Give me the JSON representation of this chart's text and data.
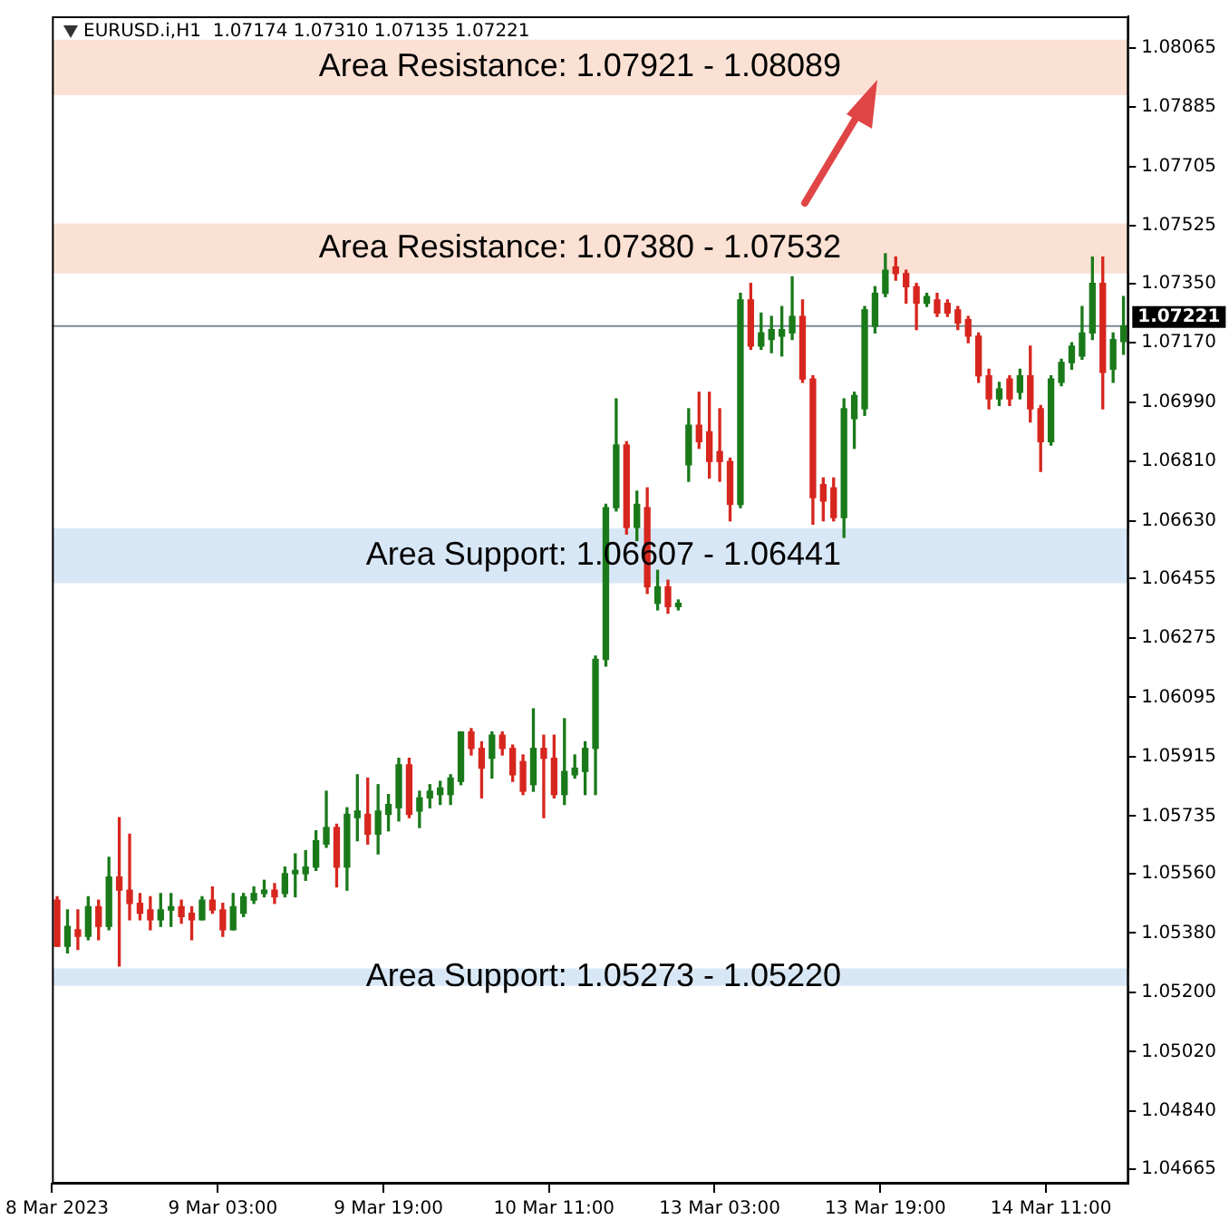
{
  "chart_data": {
    "type": "candlestick",
    "title": "EURUSD.i,H1  1.07174 1.07310 1.07135 1.07221",
    "categories": [
      "8 Mar 2023",
      null,
      null,
      null,
      null,
      null,
      null,
      null,
      null,
      null,
      null,
      null,
      null,
      null,
      null,
      null,
      "9 Mar 03:00",
      null,
      null,
      null,
      null,
      null,
      null,
      null,
      null,
      null,
      null,
      null,
      null,
      null,
      null,
      null,
      "9 Mar 19:00",
      null,
      null,
      null,
      null,
      null,
      null,
      null,
      null,
      null,
      null,
      null,
      null,
      null,
      null,
      null,
      "10 Mar 11:00",
      null,
      null,
      null,
      null,
      null,
      null,
      null,
      null,
      null,
      null,
      null,
      null,
      null,
      null,
      null,
      "13 Mar 03:00",
      null,
      null,
      null,
      null,
      null,
      null,
      null,
      null,
      null,
      null,
      null,
      null,
      null,
      null,
      null,
      "13 Mar 19:00",
      null,
      null,
      null,
      null,
      null,
      null,
      null,
      null,
      null,
      null,
      null,
      null,
      null,
      null,
      null,
      "14 Mar 11:00",
      null,
      null,
      null,
      null,
      null,
      null,
      null
    ],
    "ohlc": [
      [
        1.0548,
        1.0549,
        1.0534,
        1.0534
      ],
      [
        1.0534,
        1.0545,
        1.0532,
        1.054
      ],
      [
        1.0539,
        1.0545,
        1.0533,
        1.0537
      ],
      [
        1.0537,
        1.0549,
        1.0536,
        1.0546
      ],
      [
        1.0546,
        1.0548,
        1.0536,
        1.054
      ],
      [
        1.054,
        1.0561,
        1.0539,
        1.0555
      ],
      [
        1.0555,
        1.0573,
        1.0528,
        1.0551
      ],
      [
        1.0551,
        1.0568,
        1.0542,
        1.0547
      ],
      [
        1.0547,
        1.055,
        1.0542,
        1.0544
      ],
      [
        1.0545,
        1.0549,
        1.0539,
        1.0542
      ],
      [
        1.0542,
        1.055,
        1.054,
        1.0545
      ],
      [
        1.0545,
        1.055,
        1.054,
        1.0546
      ],
      [
        1.0546,
        1.0548,
        1.0541,
        1.0543
      ],
      [
        1.0544,
        1.0546,
        1.0536,
        1.0542
      ],
      [
        1.0542,
        1.0549,
        1.0542,
        1.0548
      ],
      [
        1.0548,
        1.0552,
        1.0544,
        1.0545
      ],
      [
        1.0545,
        1.0547,
        1.0537,
        1.0539
      ],
      [
        1.0539,
        1.055,
        1.0539,
        1.0546
      ],
      [
        1.0544,
        1.055,
        1.0543,
        1.0549
      ],
      [
        1.0548,
        1.0552,
        1.0547,
        1.055
      ],
      [
        1.055,
        1.0554,
        1.0549,
        1.0551
      ],
      [
        1.0551,
        1.0553,
        1.0547,
        1.0549
      ],
      [
        1.055,
        1.0558,
        1.0549,
        1.0556
      ],
      [
        1.0556,
        1.0562,
        1.0549,
        1.0557
      ],
      [
        1.0556,
        1.0563,
        1.0554,
        1.0558
      ],
      [
        1.0558,
        1.0569,
        1.0557,
        1.0566
      ],
      [
        1.0565,
        1.0581,
        1.0564,
        1.057
      ],
      [
        1.057,
        1.0571,
        1.0552,
        1.0558
      ],
      [
        1.0558,
        1.0576,
        1.0551,
        1.0574
      ],
      [
        1.0573,
        1.0586,
        1.0566,
        1.0575
      ],
      [
        1.0574,
        1.0585,
        1.0565,
        1.0568
      ],
      [
        1.0568,
        1.0583,
        1.0562,
        1.0575
      ],
      [
        1.0574,
        1.058,
        1.0569,
        1.0577
      ],
      [
        1.0576,
        1.0591,
        1.0572,
        1.0589
      ],
      [
        1.0589,
        1.0591,
        1.0573,
        1.0574
      ],
      [
        1.0575,
        1.0581,
        1.057,
        1.0579
      ],
      [
        1.0579,
        1.0583,
        1.0576,
        1.0581
      ],
      [
        1.058,
        1.0584,
        1.0577,
        1.0582
      ],
      [
        1.058,
        1.0586,
        1.0577,
        1.0585
      ],
      [
        1.0584,
        1.0599,
        1.0583,
        1.0599
      ],
      [
        1.0599,
        1.06,
        1.0592,
        1.0594
      ],
      [
        1.0594,
        1.0596,
        1.0579,
        1.0588
      ],
      [
        1.0591,
        1.0599,
        1.0585,
        1.0598
      ],
      [
        1.0598,
        1.0599,
        1.0592,
        1.0594
      ],
      [
        1.0594,
        1.0595,
        1.0584,
        1.0586
      ],
      [
        1.059,
        1.0592,
        1.058,
        1.0581
      ],
      [
        1.0583,
        1.0606,
        1.0581,
        1.0594
      ],
      [
        1.0594,
        1.0598,
        1.0573,
        1.0591
      ],
      [
        1.0591,
        1.0598,
        1.0579,
        1.058
      ],
      [
        1.058,
        1.0603,
        1.0577,
        1.0587
      ],
      [
        1.0586,
        1.0592,
        1.0585,
        1.0588
      ],
      [
        1.0587,
        1.0596,
        1.058,
        1.0594
      ],
      [
        1.0594,
        1.0622,
        1.058,
        1.0621
      ],
      [
        1.0621,
        1.0668,
        1.0619,
        1.0667
      ],
      [
        1.0667,
        1.07,
        1.0666,
        1.0686
      ],
      [
        1.0686,
        1.0687,
        1.0659,
        1.0661
      ],
      [
        1.0661,
        1.0672,
        1.0657,
        1.0668
      ],
      [
        1.0667,
        1.0673,
        1.0641,
        1.0643
      ],
      [
        1.0638,
        1.0648,
        1.0636,
        1.0643
      ],
      [
        1.0643,
        1.0645,
        1.0635,
        1.0637
      ],
      [
        1.0637,
        1.0639,
        1.0636,
        1.0638
      ],
      [
        1.068,
        1.0697,
        1.0675,
        1.0692
      ],
      [
        1.0692,
        1.0702,
        1.0685,
        1.0687
      ],
      [
        1.069,
        1.0702,
        1.0676,
        1.0681
      ],
      [
        1.0684,
        1.0697,
        1.0675,
        1.0681
      ],
      [
        1.0681,
        1.0682,
        1.0663,
        1.0668
      ],
      [
        1.0668,
        1.0732,
        1.0667,
        1.073
      ],
      [
        1.073,
        1.0735,
        1.0715,
        1.0716
      ],
      [
        1.0716,
        1.0726,
        1.0715,
        1.072
      ],
      [
        1.0718,
        1.0725,
        1.0714,
        1.0721
      ],
      [
        1.0719,
        1.0728,
        1.0713,
        1.0721
      ],
      [
        1.072,
        1.0737,
        1.0718,
        1.0725
      ],
      [
        1.0725,
        1.073,
        1.0705,
        1.0706
      ],
      [
        1.0706,
        1.0707,
        1.0662,
        1.067
      ],
      [
        1.0674,
        1.0676,
        1.0663,
        1.0669
      ],
      [
        1.0673,
        1.0676,
        1.0663,
        1.0664
      ],
      [
        1.0664,
        1.07,
        1.0658,
        1.0697
      ],
      [
        1.0694,
        1.0702,
        1.0685,
        1.0701
      ],
      [
        1.0697,
        1.0728,
        1.0695,
        1.0727
      ],
      [
        1.0722,
        1.0734,
        1.072,
        1.0732
      ],
      [
        1.0732,
        1.0744,
        1.0731,
        1.0739
      ],
      [
        1.074,
        1.0743,
        1.0736,
        1.0738
      ],
      [
        1.0738,
        1.0739,
        1.0729,
        1.0734
      ],
      [
        1.0734,
        1.0735,
        1.0721,
        1.0729
      ],
      [
        1.0729,
        1.0732,
        1.0728,
        1.0731
      ],
      [
        1.073,
        1.0732,
        1.0725,
        1.0726
      ],
      [
        1.0729,
        1.073,
        1.0725,
        1.0726
      ],
      [
        1.0727,
        1.0728,
        1.0721,
        1.0723
      ],
      [
        1.0724,
        1.0725,
        1.0717,
        1.0719
      ],
      [
        1.0719,
        1.072,
        1.0705,
        1.0707
      ],
      [
        1.0707,
        1.0709,
        1.0697,
        1.07
      ],
      [
        1.07,
        1.0705,
        1.0698,
        1.0703
      ],
      [
        1.0706,
        1.0707,
        1.0698,
        1.07
      ],
      [
        1.0702,
        1.0709,
        1.07,
        1.0707
      ],
      [
        1.0707,
        1.0716,
        1.0693,
        1.0697
      ],
      [
        1.0697,
        1.0698,
        1.0678,
        1.0687
      ],
      [
        1.0687,
        1.0707,
        1.0686,
        1.0706
      ],
      [
        1.0705,
        1.0712,
        1.0704,
        1.0711
      ],
      [
        1.0711,
        1.0717,
        1.0709,
        1.0716
      ],
      [
        1.0713,
        1.0728,
        1.0712,
        1.072
      ],
      [
        1.072,
        1.0743,
        1.0718,
        1.0735
      ],
      [
        1.0735,
        1.0743,
        1.0697,
        1.0708
      ],
      [
        1.0709,
        1.072,
        1.0705,
        1.0718
      ],
      [
        1.07174,
        1.0731,
        1.07135,
        1.07221
      ]
    ],
    "colors": [
      "#d7261e",
      "#1a7a1a",
      "#d7261e",
      "#1a7a1a",
      "#d7261e",
      "#1a7a1a",
      "#d7261e",
      "#d7261e",
      "#d7261e",
      "#d7261e",
      "#1a7a1a",
      "#1a7a1a",
      "#d7261e",
      "#d7261e",
      "#1a7a1a",
      "#d7261e",
      "#d7261e",
      "#1a7a1a",
      "#1a7a1a",
      "#1a7a1a",
      "#1a7a1a",
      "#d7261e",
      "#1a7a1a",
      "#1a7a1a",
      "#1a7a1a",
      "#1a7a1a",
      "#1a7a1a",
      "#d7261e",
      "#1a7a1a",
      "#1a7a1a",
      "#d7261e",
      "#1a7a1a",
      "#1a7a1a",
      "#1a7a1a",
      "#d7261e",
      "#1a7a1a",
      "#1a7a1a",
      "#1a7a1a",
      "#1a7a1a",
      "#1a7a1a",
      "#d7261e",
      "#d7261e",
      "#1a7a1a",
      "#d7261e",
      "#d7261e",
      "#d7261e",
      "#1a7a1a",
      "#d7261e",
      "#d7261e",
      "#1a7a1a",
      "#1a7a1a",
      "#1a7a1a",
      "#1a7a1a",
      "#1a7a1a",
      "#1a7a1a",
      "#d7261e",
      "#1a7a1a",
      "#d7261e",
      "#1a7a1a",
      "#d7261e",
      "#1a7a1a",
      "#1a7a1a",
      "#d7261e",
      "#d7261e",
      "#d7261e",
      "#d7261e",
      "#1a7a1a",
      "#d7261e",
      "#1a7a1a",
      "#1a7a1a",
      "#1a7a1a",
      "#1a7a1a",
      "#d7261e",
      "#d7261e",
      "#d7261e",
      "#d7261e",
      "#1a7a1a",
      "#1a7a1a",
      "#1a7a1a",
      "#1a7a1a",
      "#1a7a1a",
      "#d7261e",
      "#d7261e",
      "#d7261e",
      "#1a7a1a",
      "#d7261e",
      "#d7261e",
      "#d7261e",
      "#d7261e",
      "#d7261e",
      "#d7261e",
      "#1a7a1a",
      "#d7261e",
      "#1a7a1a",
      "#d7261e",
      "#d7261e",
      "#1a7a1a",
      "#1a7a1a",
      "#1a7a1a",
      "#1a7a1a",
      "#1a7a1a",
      "#d7261e",
      "#1a7a1a",
      "#1a7a1a"
    ],
    "ylim": [
      1.0462,
      1.0816
    ],
    "yticks": [
      1.08065,
      1.07885,
      1.07705,
      1.07525,
      {
        "value": 1.0735,
        "label": "1.07350"
      },
      {
        "value": 1.0717,
        "label": "1.07170"
      },
      {
        "value": 1.0699,
        "label": "1.06990"
      },
      {
        "value": 1.0681,
        "label": "1.06810"
      },
      {
        "value": 1.0663,
        "label": "1.06630"
      },
      1.06455,
      1.06275,
      1.06095,
      1.05915,
      1.05735,
      {
        "value": 1.0556,
        "label": "1.05560"
      },
      {
        "value": 1.0538,
        "label": "1.05380"
      },
      {
        "value": 1.052,
        "label": "1.05200"
      },
      {
        "value": 1.0502,
        "label": "1.05020"
      },
      {
        "value": 1.0484,
        "label": "1.04840"
      },
      1.04665
    ],
    "bands": [
      {
        "axis": "y",
        "from": 1.07921,
        "to": 1.08089,
        "label": "Area Resistance: 1.07921 - 1.08089",
        "color": "#fbe1d4"
      },
      {
        "axis": "y",
        "from": 1.0738,
        "to": 1.07532,
        "label": "Area Resistance: 1.07380 - 1.07532",
        "color": "#fbe1d4"
      },
      {
        "axis": "y",
        "from": 1.06441,
        "to": 1.06607,
        "label": "Area Support: 1.06607 - 1.06441",
        "color": "#d8e7f6"
      },
      {
        "axis": "y",
        "from": 1.0522,
        "to": 1.05273,
        "label": "Area Support: 1.05273 - 1.05220",
        "color": "#d8e7f6"
      }
    ],
    "ref_lines": [
      {
        "axis": "y",
        "value": 1.07221,
        "label": "1.07221",
        "color": "#7a8a95"
      }
    ],
    "grid": false,
    "legend": false
  }
}
